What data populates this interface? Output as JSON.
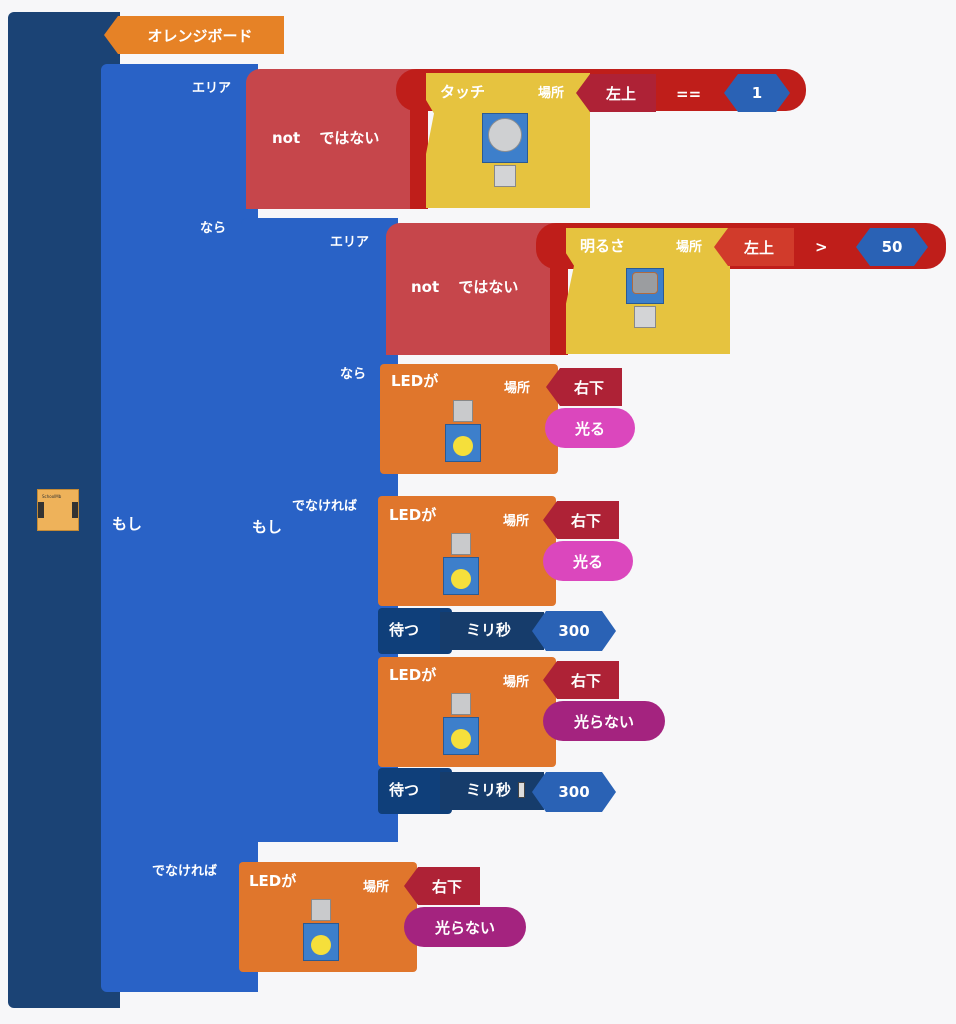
{
  "board": {
    "label": "オレンジボード",
    "icon": "schoolmbit-board-icon"
  },
  "if_outer": {
    "keyword": "もし",
    "area_label": "エリア",
    "then_label": "なら",
    "else_label": "でなければ",
    "not_block": {
      "label": "not ではない"
    },
    "touch_block": {
      "label": "タッチ",
      "place_label": "場所",
      "place_value": "左上",
      "icon": "touch-sensor-icon",
      "operator": "==",
      "value": "1"
    }
  },
  "if_inner": {
    "keyword": "もし",
    "area_label": "エリア",
    "then_label": "なら",
    "else_label": "でなければ",
    "not_block": {
      "label": "not ではない"
    },
    "light_block": {
      "label": "明るさ",
      "place_label": "場所",
      "place_value": "左上",
      "icon": "light-sensor-icon",
      "operator": ">",
      "value": "50"
    }
  },
  "led_blocks": [
    {
      "title": "LEDが",
      "place_label": "場所",
      "place_value": "右下",
      "action": "光る"
    },
    {
      "title": "LEDが",
      "place_label": "場所",
      "place_value": "右下",
      "action": "光る"
    },
    {
      "title": "LEDが",
      "place_label": "場所",
      "place_value": "右下",
      "action": "光らない"
    },
    {
      "title": "LEDが",
      "place_label": "場所",
      "place_value": "右下",
      "action": "光らない"
    }
  ],
  "wait_blocks": [
    {
      "label": "待つ",
      "unit": "ミリ秒",
      "value": "300"
    },
    {
      "label": "待つ",
      "unit": "ミリ秒",
      "value": "300"
    }
  ],
  "colors": {
    "board": "#1b4375",
    "if": "#2962c6",
    "not": "#c6464b",
    "compare": "#bf1e1a",
    "sensor": "#e6c33f",
    "led": "#e0762c",
    "place": "#ae2236",
    "on": "#db47bd",
    "off": "#a4237f",
    "wait": "#0f3f7a",
    "number": "#2a62b5"
  }
}
